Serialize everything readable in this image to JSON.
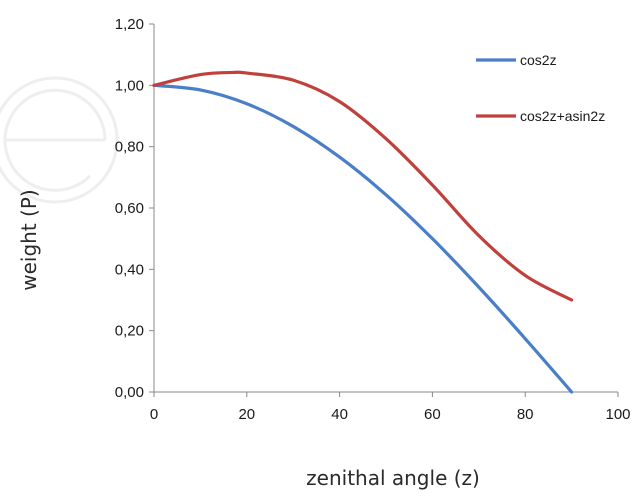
{
  "chart_data": {
    "type": "line",
    "xlabel": "zenithal angle (z)",
    "ylabel": "weight (P)",
    "xlim": [
      0,
      100
    ],
    "ylim": [
      0,
      1.2
    ],
    "x_ticks": [
      "0",
      "20",
      "40",
      "60",
      "80",
      "100"
    ],
    "y_ticks": [
      "0,00",
      "0,20",
      "0,40",
      "0,60",
      "0,80",
      "1,00",
      "1,20"
    ],
    "grid": false,
    "legend_position": "top-right",
    "series": [
      {
        "name": "cos2z",
        "color": "#4a7fc8",
        "x": [
          0,
          10,
          20,
          30,
          40,
          50,
          60,
          70,
          80,
          90
        ],
        "y": [
          1.0,
          0.985,
          0.94,
          0.866,
          0.766,
          0.643,
          0.5,
          0.342,
          0.174,
          0.0
        ]
      },
      {
        "name": "cos2z+asin2z",
        "color": "#c0403c",
        "x": [
          0,
          10,
          17,
          20,
          30,
          40,
          50,
          60,
          70,
          80,
          90
        ],
        "y": [
          1.0,
          1.035,
          1.042,
          1.04,
          1.017,
          0.947,
          0.826,
          0.675,
          0.51,
          0.38,
          0.3
        ]
      }
    ]
  }
}
